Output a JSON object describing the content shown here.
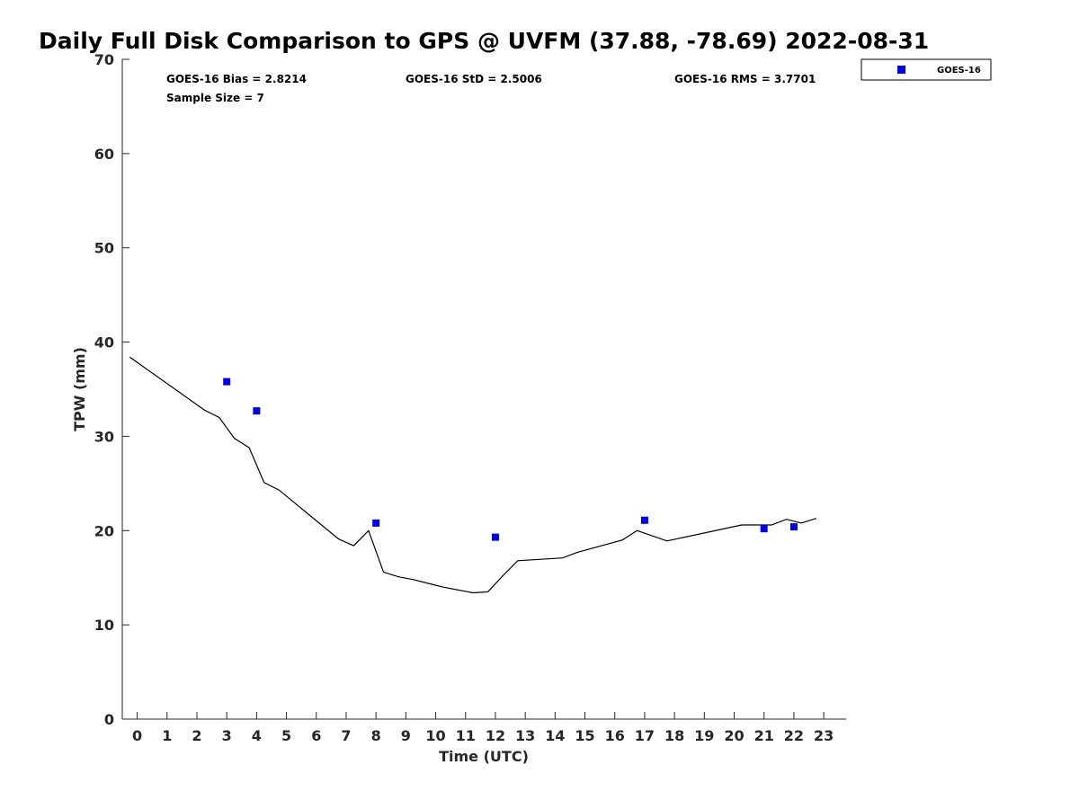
{
  "chart_data": {
    "type": "scatter",
    "title": "Daily Full Disk Comparison to GPS @ UVFM (37.88, -78.69) 2022-08-31",
    "xlabel": "Time (UTC)",
    "ylabel": "TPW (mm)",
    "xlim": [
      -0.5,
      23.75
    ],
    "ylim": [
      0,
      70
    ],
    "x_ticks": [
      "0",
      "1",
      "2",
      "3",
      "4",
      "5",
      "6",
      "7",
      "8",
      "9",
      "10",
      "11",
      "12",
      "13",
      "14",
      "15",
      "16",
      "17",
      "18",
      "19",
      "20",
      "21",
      "22",
      "23"
    ],
    "y_ticks": [
      "0",
      "10",
      "20",
      "30",
      "40",
      "50",
      "60",
      "70"
    ],
    "grid": false,
    "legend": {
      "position": "top-right outside",
      "entries": [
        "GOES-16"
      ]
    },
    "stats": {
      "bias": "GOES-16 Bias = 2.8214",
      "std": "GOES-16 StD = 2.5006",
      "rms": "GOES-16 RMS = 3.7701",
      "sample_size": "Sample Size = 7"
    },
    "series": [
      {
        "name": "GOES-16",
        "kind": "scatter",
        "marker": "square",
        "color": "#0000dd",
        "x": [
          3,
          4,
          8,
          12,
          17,
          21,
          22
        ],
        "y": [
          35.8,
          32.7,
          20.8,
          19.3,
          21.1,
          20.2,
          20.4
        ]
      },
      {
        "kind": "line",
        "color": "#000000",
        "x": [
          -0.25,
          2.25,
          2.75,
          3.25,
          3.75,
          4.25,
          4.75,
          5.25,
          5.75,
          6.25,
          6.75,
          7.25,
          7.75,
          8.25,
          8.75,
          9.25,
          9.75,
          10.25,
          10.75,
          11.25,
          11.75,
          12.25,
          12.75,
          14.25,
          14.75,
          16.25,
          16.75,
          17.75,
          20.25,
          20.75,
          21.25,
          21.75,
          22.25,
          22.75
        ],
        "y": [
          38.4,
          32.8,
          32.0,
          29.8,
          28.8,
          25.1,
          24.3,
          23.0,
          21.7,
          20.4,
          19.1,
          18.4,
          20.0,
          15.6,
          15.1,
          14.8,
          14.4,
          14.0,
          13.7,
          13.4,
          13.5,
          15.2,
          16.8,
          17.1,
          17.7,
          19.0,
          20.0,
          18.9,
          20.6,
          20.6,
          20.6,
          21.2,
          20.8,
          21.3
        ]
      }
    ]
  }
}
